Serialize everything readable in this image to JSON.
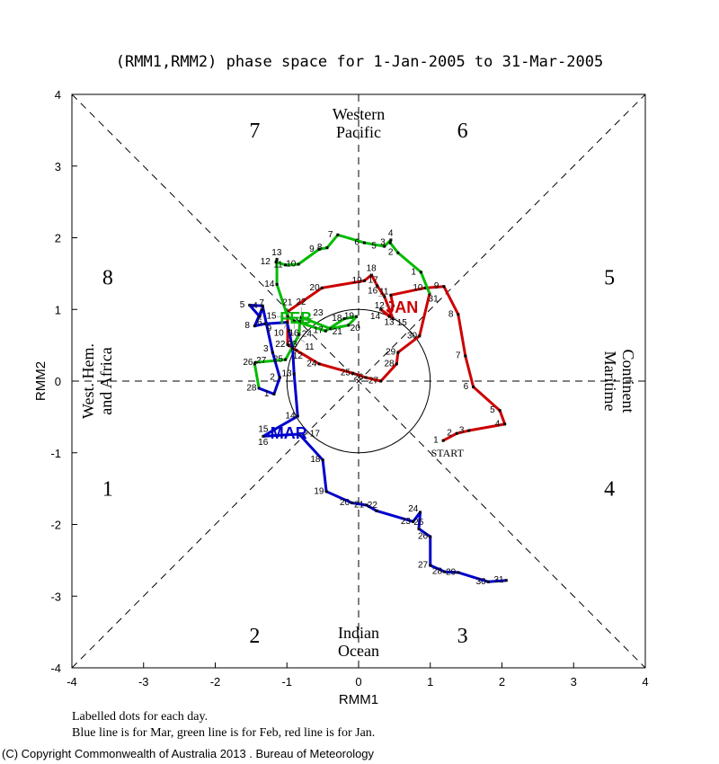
{
  "chart_data": {
    "type": "line",
    "title": "(RMM1,RMM2) phase space for  1-Jan-2005 to 31-Mar-2005",
    "xlabel": "RMM1",
    "ylabel": "RMM2",
    "xlim": [
      -4,
      4
    ],
    "ylim": [
      -4,
      4
    ],
    "xticks": [
      "-4",
      "-3",
      "-2",
      "-1",
      "0",
      "1",
      "2",
      "3",
      "4"
    ],
    "yticks": [
      "-4",
      "-3",
      "-2",
      "-1",
      "0",
      "1",
      "2",
      "3",
      "4"
    ],
    "phases": [
      {
        "label": "1",
        "x": -3.5,
        "y": -1.5
      },
      {
        "label": "2",
        "x": -1.45,
        "y": -3.55
      },
      {
        "label": "3",
        "x": 1.45,
        "y": -3.55
      },
      {
        "label": "4",
        "x": 3.5,
        "y": -1.5
      },
      {
        "label": "5",
        "x": 3.5,
        "y": 1.45
      },
      {
        "label": "6",
        "x": 1.45,
        "y": 3.5
      },
      {
        "label": "7",
        "x": -1.45,
        "y": 3.5
      },
      {
        "label": "8",
        "x": -3.5,
        "y": 1.45
      }
    ],
    "regions": {
      "top": [
        "Western",
        "Pacific"
      ],
      "bottom": [
        "Indian",
        "Ocean"
      ],
      "left": [
        "West. Hem.",
        "and Africa"
      ],
      "right": [
        "Maritime",
        "Continent"
      ]
    },
    "start_label": "START",
    "series": [
      {
        "name": "JAN",
        "color": "#cc0000",
        "points": [
          [
            1.18,
            -0.83
          ],
          [
            1.37,
            -0.73
          ],
          [
            1.54,
            -0.69
          ],
          [
            2.04,
            -0.6
          ],
          [
            1.97,
            -0.41
          ],
          [
            1.6,
            -0.08
          ],
          [
            1.49,
            0.35
          ],
          [
            1.39,
            0.93
          ],
          [
            1.19,
            1.32
          ],
          [
            0.93,
            1.3
          ],
          [
            0.45,
            1.2
          ],
          [
            0.48,
            1.05
          ],
          [
            0.43,
            0.9
          ],
          [
            0.31,
            1.0
          ],
          [
            0.48,
            0.87
          ],
          [
            0.36,
            1.18
          ],
          [
            0.26,
            1.33
          ],
          [
            0.18,
            1.48
          ],
          [
            0.08,
            1.4
          ],
          [
            -0.51,
            1.3
          ],
          [
            -0.99,
            0.97
          ],
          [
            -0.99,
            0.51
          ],
          [
            -0.87,
            0.43
          ],
          [
            -0.55,
            0.24
          ],
          [
            -0.08,
            0.11
          ],
          [
            0.1,
            0.05
          ],
          [
            0.31,
            0.0
          ],
          [
            0.53,
            0.24
          ],
          [
            0.55,
            0.4
          ],
          [
            0.85,
            0.63
          ],
          [
            0.99,
            1.22
          ]
        ]
      },
      {
        "name": "FEB",
        "color": "#00bb00",
        "points": [
          [
            0.87,
            1.52
          ],
          [
            0.55,
            1.79
          ],
          [
            0.44,
            1.93
          ],
          [
            0.45,
            1.97
          ],
          [
            0.36,
            1.88
          ],
          [
            0.08,
            1.93
          ],
          [
            -0.29,
            2.04
          ],
          [
            -0.44,
            1.86
          ],
          [
            -0.55,
            1.84
          ],
          [
            -0.84,
            1.63
          ],
          [
            -1.02,
            1.62
          ],
          [
            -1.15,
            1.66
          ],
          [
            -1.14,
            1.7
          ],
          [
            -1.14,
            1.35
          ],
          [
            -0.99,
            0.9
          ],
          [
            -0.9,
            0.84
          ],
          [
            -0.46,
            0.7
          ],
          [
            -0.2,
            0.87
          ],
          [
            -0.03,
            0.9
          ],
          [
            -0.14,
            0.78
          ],
          [
            -0.39,
            0.73
          ],
          [
            -0.8,
            0.89
          ],
          [
            -0.82,
            0.83
          ],
          [
            -0.83,
            0.65
          ],
          [
            -1.02,
            0.3
          ],
          [
            -1.44,
            0.26
          ],
          [
            -1.45,
            0.24
          ],
          [
            -1.39,
            -0.1
          ]
        ]
      },
      {
        "name": "MAR",
        "color": "#0000cc",
        "points": [
          [
            -1.18,
            -0.18
          ],
          [
            -1.1,
            0.05
          ],
          [
            -1.2,
            0.4
          ],
          [
            -1.34,
            1.05
          ],
          [
            -1.52,
            1.06
          ],
          [
            -1.38,
            0.9
          ],
          [
            -1.35,
            1.0
          ],
          [
            -1.45,
            0.77
          ],
          [
            -1.3,
            0.8
          ],
          [
            -1.0,
            0.82
          ],
          [
            -0.97,
            0.7
          ],
          [
            -0.92,
            0.45
          ],
          [
            -0.9,
            0.1
          ],
          [
            -0.85,
            -0.49
          ],
          [
            -1.18,
            -0.68
          ],
          [
            -1.33,
            -0.77
          ],
          [
            -0.83,
            -0.74
          ],
          [
            -0.5,
            -1.1
          ],
          [
            -0.45,
            -1.54
          ],
          [
            -0.09,
            -1.7
          ],
          [
            0.11,
            -1.73
          ],
          [
            0.25,
            -1.81
          ],
          [
            0.76,
            -1.96
          ],
          [
            0.86,
            -1.83
          ],
          [
            0.84,
            -2.06
          ],
          [
            1.0,
            -2.17
          ],
          [
            1.0,
            -2.57
          ],
          [
            1.2,
            -2.66
          ],
          [
            1.39,
            -2.67
          ],
          [
            1.81,
            -2.8
          ],
          [
            2.06,
            -2.78
          ]
        ]
      }
    ],
    "month_labels": [
      {
        "label": "JAN",
        "x": 0.38,
        "y": 0.95
      },
      {
        "label": "FEB",
        "x": -1.1,
        "y": 0.8
      },
      {
        "label": "MAR",
        "x": -1.2,
        "y": -0.8
      }
    ],
    "notes": [
      "Labelled dots for each day.",
      "Blue line is for Mar, green line is for Feb, red line is for Jan."
    ]
  },
  "footer": {
    "copyright": "(C) Copyright Commonwealth of Australia 2013 . Bureau of Meteorology"
  }
}
